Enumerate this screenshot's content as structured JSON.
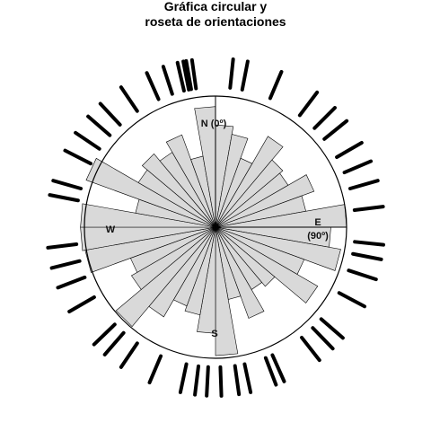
{
  "chart_data": {
    "type": "rose",
    "title_lines": [
      "Gráfica circular y",
      "roseta de orientaciones"
    ],
    "compass_labels": {
      "north": "N (0º)",
      "east": "E",
      "east_sub": "(90º)",
      "south": "S",
      "west": "W"
    },
    "bin_width_deg": 10,
    "max_radius": 1.0,
    "bins": [
      {
        "start": 0,
        "end": 10,
        "value": 0.78
      },
      {
        "start": 10,
        "end": 20,
        "value": 0.72
      },
      {
        "start": 20,
        "end": 30,
        "value": 0.56
      },
      {
        "start": 30,
        "end": 40,
        "value": 0.8
      },
      {
        "start": 40,
        "end": 50,
        "value": 0.67
      },
      {
        "start": 50,
        "end": 60,
        "value": 0.64
      },
      {
        "start": 60,
        "end": 70,
        "value": 0.8
      },
      {
        "start": 70,
        "end": 80,
        "value": 0.7
      },
      {
        "start": 80,
        "end": 90,
        "value": 1.0
      },
      {
        "start": 90,
        "end": 100,
        "value": 0.88
      },
      {
        "start": 100,
        "end": 110,
        "value": 0.97
      },
      {
        "start": 110,
        "end": 120,
        "value": 0.72
      },
      {
        "start": 120,
        "end": 130,
        "value": 0.9
      },
      {
        "start": 130,
        "end": 140,
        "value": 0.59
      },
      {
        "start": 140,
        "end": 150,
        "value": 0.55
      },
      {
        "start": 150,
        "end": 160,
        "value": 0.74
      },
      {
        "start": 160,
        "end": 170,
        "value": 0.56
      },
      {
        "start": 170,
        "end": 180,
        "value": 0.98
      },
      {
        "start": 180,
        "end": 190,
        "value": 0.81
      },
      {
        "start": 190,
        "end": 200,
        "value": 0.68
      },
      {
        "start": 200,
        "end": 210,
        "value": 0.64
      },
      {
        "start": 210,
        "end": 220,
        "value": 0.79
      },
      {
        "start": 220,
        "end": 230,
        "value": 0.99
      },
      {
        "start": 230,
        "end": 240,
        "value": 0.74
      },
      {
        "start": 240,
        "end": 250,
        "value": 0.69
      },
      {
        "start": 250,
        "end": 260,
        "value": 1.01
      },
      {
        "start": 260,
        "end": 270,
        "value": 1.03
      },
      {
        "start": 270,
        "end": 280,
        "value": 1.03
      },
      {
        "start": 280,
        "end": 290,
        "value": 0.62
      },
      {
        "start": 290,
        "end": 300,
        "value": 1.05
      },
      {
        "start": 300,
        "end": 310,
        "value": 0.68
      },
      {
        "start": 310,
        "end": 320,
        "value": 0.73
      },
      {
        "start": 320,
        "end": 330,
        "value": 0.66
      },
      {
        "start": 330,
        "end": 340,
        "value": 0.75
      },
      {
        "start": 340,
        "end": 350,
        "value": 0.55
      },
      {
        "start": 350,
        "end": 360,
        "value": 0.92
      }
    ],
    "circle_observations_deg": [
      -10,
      -13,
      6,
      23,
      37,
      51,
      60,
      67,
      83,
      96,
      108,
      118,
      131,
      142,
      156,
      168,
      172,
      178,
      183,
      192,
      203,
      214,
      226,
      240,
      249,
      263,
      281,
      297,
      304,
      317,
      326,
      336,
      349,
      352,
      11,
      45,
      74,
      101,
      136,
      159,
      187,
      221,
      256,
      286,
      311,
      342
    ],
    "colors": {
      "petal_fill": "#d9d9d9",
      "petal_stroke": "#000000",
      "circle_stroke": "#000000",
      "tick": "#000000"
    }
  }
}
